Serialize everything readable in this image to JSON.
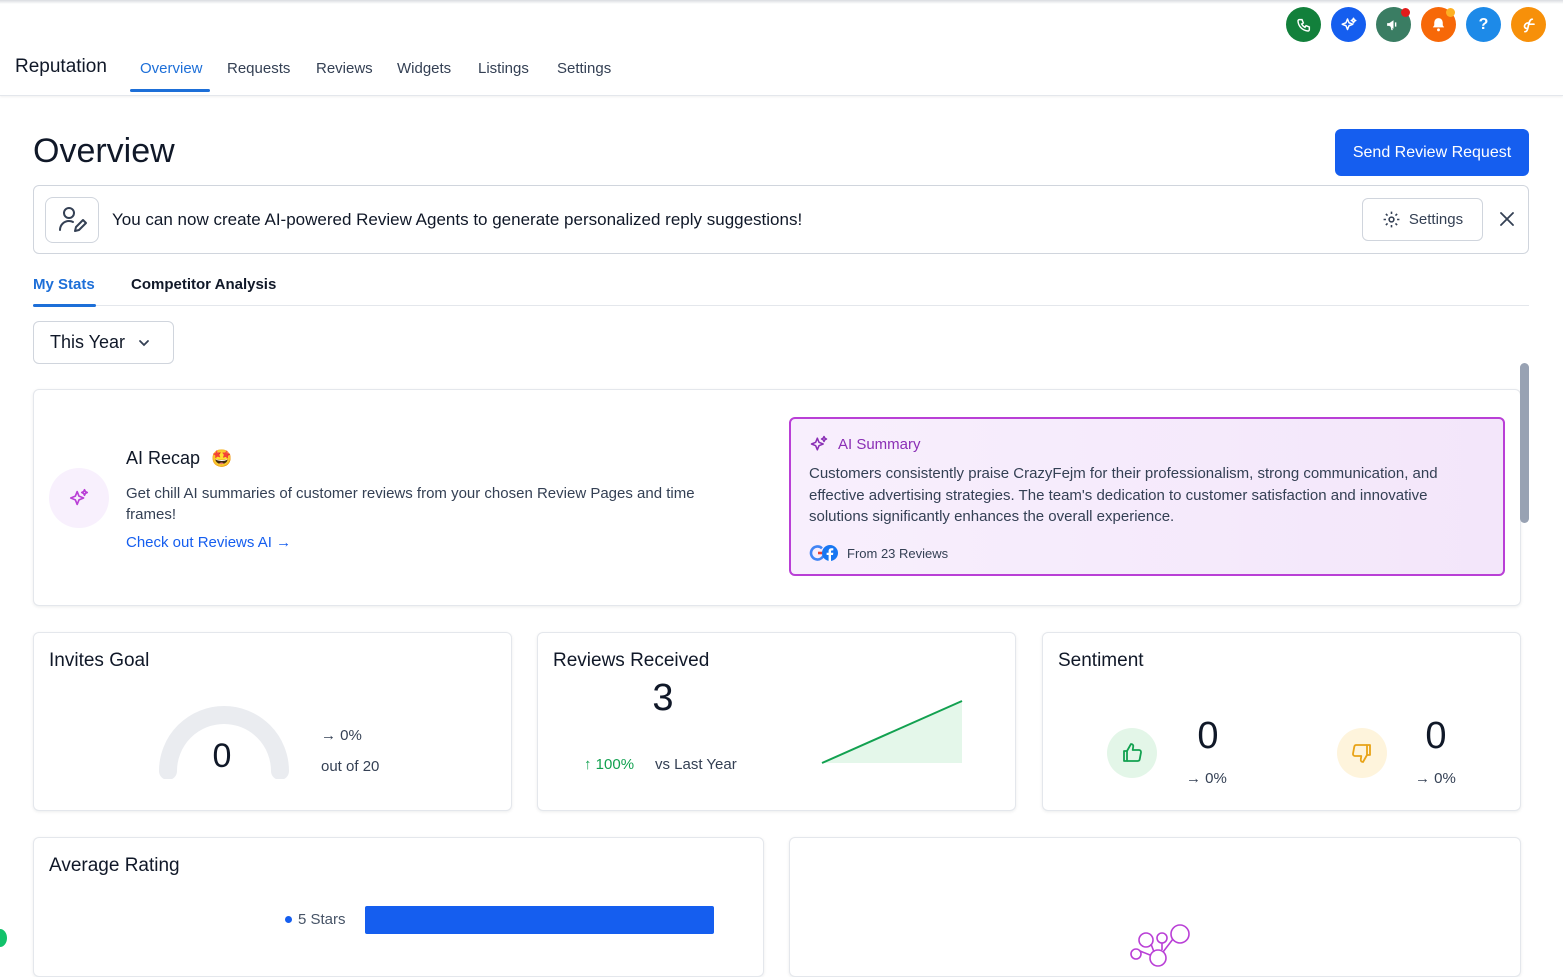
{
  "header": {
    "app_title": "Reputation",
    "tabs": [
      {
        "label": "Overview",
        "active": true
      },
      {
        "label": "Requests"
      },
      {
        "label": "Reviews"
      },
      {
        "label": "Widgets"
      },
      {
        "label": "Listings"
      },
      {
        "label": "Settings"
      }
    ],
    "icons": [
      {
        "name": "phone-icon",
        "color": "#12803b"
      },
      {
        "name": "ai-sparkle-icon",
        "color": "#155eef"
      },
      {
        "name": "megaphone-icon",
        "color": "#3a7d63",
        "badge": "#e31b1b"
      },
      {
        "name": "bell-icon",
        "color": "#f76808",
        "badge": "#fdb022"
      },
      {
        "name": "help-icon",
        "color": "#1d8ae8"
      },
      {
        "name": "avatar-icon",
        "color": "#f79009"
      }
    ]
  },
  "page": {
    "title": "Overview",
    "primary_action": "Send Review Request"
  },
  "banner": {
    "message": "You can now create AI-powered Review Agents to generate personalized reply suggestions!",
    "settings_label": "Settings"
  },
  "stats_tabs": [
    {
      "label": "My Stats",
      "active": true
    },
    {
      "label": "Competitor Analysis"
    }
  ],
  "filter": {
    "selected": "This Year"
  },
  "ai_recap": {
    "title": "AI Recap",
    "emoji": "🤩",
    "description": "Get chill AI summaries of customer reviews from your chosen Review Pages and time frames!",
    "link": "Check out Reviews AI →"
  },
  "ai_summary": {
    "title": "AI Summary",
    "text": "Customers consistently praise CrazyFejm for their professionalism, strong communication, and effective advertising strategies. The team's dedication to customer satisfaction and innovative solutions significantly enhances the overall experience.",
    "source": "From 23 Reviews"
  },
  "invites_goal": {
    "title": "Invites Goal",
    "value": "0",
    "change": "→ 0%",
    "goal_text": "out of 20",
    "progress": 0
  },
  "reviews_received": {
    "title": "Reviews Received",
    "value": "3",
    "change": "↑ 100%",
    "comparison": "vs Last Year",
    "trend": [
      0,
      3
    ]
  },
  "sentiment": {
    "title": "Sentiment",
    "positive": {
      "value": "0",
      "change": "→ 0%"
    },
    "negative": {
      "value": "0",
      "change": "→ 0%"
    }
  },
  "average_rating": {
    "title": "Average Rating",
    "rows": [
      {
        "label": "5 Stars",
        "share": 1.0
      }
    ]
  }
}
